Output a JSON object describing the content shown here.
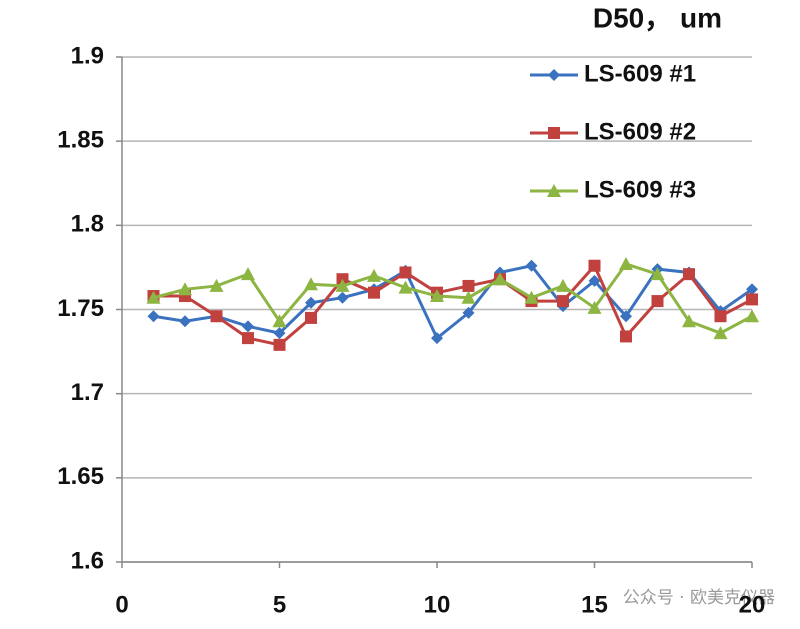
{
  "chart_data": {
    "type": "line",
    "title": "D50， um",
    "x": [
      1,
      2,
      3,
      4,
      5,
      6,
      7,
      8,
      9,
      10,
      11,
      12,
      13,
      14,
      15,
      16,
      17,
      18,
      19,
      20
    ],
    "series": [
      {
        "name": "LS-609 #1",
        "color": "#3a72c0",
        "marker": "diamond",
        "values": [
          1.746,
          1.743,
          1.746,
          1.74,
          1.736,
          1.754,
          1.757,
          1.762,
          1.773,
          1.733,
          1.748,
          1.772,
          1.776,
          1.752,
          1.767,
          1.746,
          1.774,
          1.772,
          1.749,
          1.762
        ]
      },
      {
        "name": "LS-609 #2",
        "color": "#c0413e",
        "marker": "square",
        "values": [
          1.758,
          1.758,
          1.746,
          1.733,
          1.729,
          1.745,
          1.768,
          1.76,
          1.772,
          1.76,
          1.764,
          1.768,
          1.755,
          1.755,
          1.776,
          1.734,
          1.755,
          1.771,
          1.746,
          1.756
        ]
      },
      {
        "name": "LS-609 #3",
        "color": "#8db542",
        "marker": "triangle",
        "values": [
          1.757,
          1.762,
          1.764,
          1.771,
          1.743,
          1.765,
          1.764,
          1.77,
          1.763,
          1.758,
          1.757,
          1.768,
          1.757,
          1.764,
          1.751,
          1.777,
          1.771,
          1.743,
          1.736,
          1.746
        ]
      }
    ],
    "xlim": [
      0,
      20
    ],
    "xticks": [
      0,
      5,
      10,
      15,
      20
    ],
    "ylim": [
      1.6,
      1.9
    ],
    "yticks": [
      1.6,
      1.65,
      1.7,
      1.75,
      1.8,
      1.85,
      1.9
    ],
    "grid": true,
    "legend": "top-right",
    "watermark": "公众号 · 欧美克仪器"
  }
}
